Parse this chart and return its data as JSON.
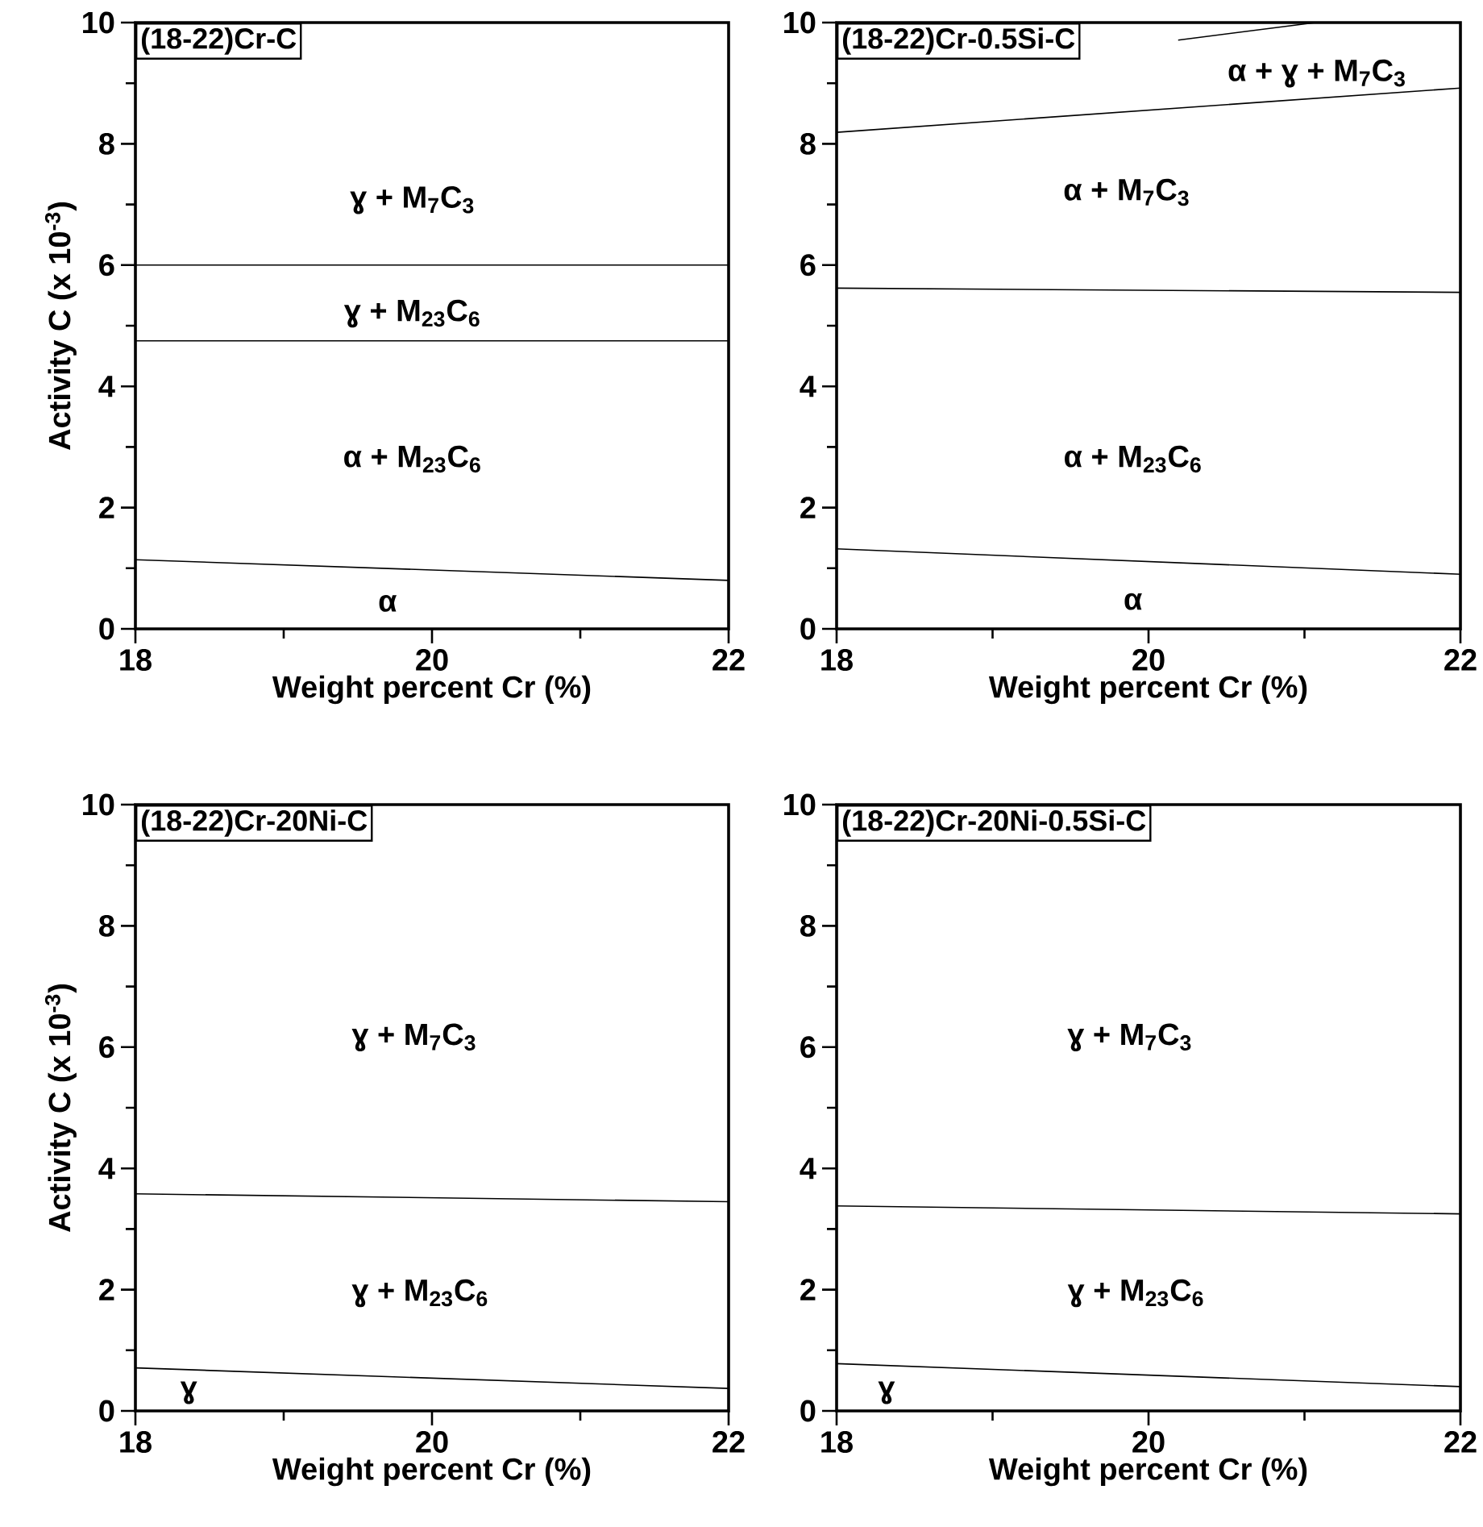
{
  "chart_data": [
    {
      "type": "line",
      "title": "(18-22)Cr-C",
      "xlabel": "Weight percent Cr (%)",
      "ylabel": "Activity C (x 10$^{-3}$)",
      "xlim": [
        18,
        22
      ],
      "ylim": [
        0,
        10
      ],
      "xticks": [
        18,
        20,
        22
      ],
      "yticks": [
        0,
        2,
        4,
        6,
        8,
        10
      ],
      "series": [
        {
          "color": "#000000",
          "x": [
            18,
            22
          ],
          "values": [
            6.0,
            6.0
          ]
        },
        {
          "color": "#000000",
          "x": [
            18,
            22
          ],
          "values": [
            4.75,
            4.75
          ]
        },
        {
          "color": "#000000",
          "x": [
            18,
            22
          ],
          "values": [
            1.14,
            0.8
          ]
        }
      ],
      "annotations": [
        "ɣ + M$_{7}$C$_{3}$",
        "ɣ + M$_{23}$C$_{6}$",
        "α + M$_{23}$C$_{6}$",
        "α"
      ]
    },
    {
      "type": "line",
      "title": "(18-22)Cr-0.5Si-C",
      "xlabel": "Weight percent Cr (%)",
      "xlim": [
        18,
        22
      ],
      "ylim": [
        0,
        10
      ],
      "xticks": [
        18,
        20,
        22
      ],
      "yticks": [
        0,
        2,
        4,
        6,
        8,
        10
      ],
      "series": [
        {
          "color": "#000000",
          "x": [
            20.19,
            21.07
          ],
          "values": [
            9.71,
            10
          ]
        },
        {
          "color": "#000000",
          "x": [
            18,
            22
          ],
          "values": [
            8.19,
            8.92
          ]
        },
        {
          "color": "#000000",
          "x": [
            18,
            22
          ],
          "values": [
            5.62,
            5.55
          ]
        },
        {
          "color": "#000000",
          "x": [
            18,
            22
          ],
          "values": [
            1.32,
            0.9
          ]
        }
      ],
      "annotations": [
        "α + ɣ + M$_{7}$C$_{3}$",
        "α + M$_{7}$C$_{3}$",
        "α + M$_{23}$C$_{6}$",
        "α"
      ]
    },
    {
      "type": "line",
      "title": "(18-22)Cr-20Ni-C",
      "xlabel": "Weight percent Cr (%)",
      "ylabel": "Activity C (x 10$^{-3}$)",
      "xlim": [
        18,
        22
      ],
      "ylim": [
        0,
        10
      ],
      "xticks": [
        18,
        20,
        22
      ],
      "yticks": [
        0,
        2,
        4,
        6,
        8,
        10
      ],
      "series": [
        {
          "color": "#000000",
          "x": [
            18,
            22
          ],
          "values": [
            3.58,
            3.45
          ]
        },
        {
          "color": "#000000",
          "x": [
            18,
            22
          ],
          "values": [
            0.71,
            0.37
          ]
        }
      ],
      "annotations": [
        "ɣ + M$_{7}$C$_{3}$",
        "ɣ + M$_{23}$C$_{6}$",
        "ɣ"
      ]
    },
    {
      "type": "line",
      "title": "(18-22)Cr-20Ni-0.5Si-C",
      "xlabel": "Weight percent Cr (%)",
      "xlim": [
        18,
        22
      ],
      "ylim": [
        0,
        10
      ],
      "xticks": [
        18,
        20,
        22
      ],
      "yticks": [
        0,
        2,
        4,
        6,
        8,
        10
      ],
      "series": [
        {
          "color": "#000000",
          "x": [
            18,
            22
          ],
          "values": [
            3.38,
            3.25
          ]
        },
        {
          "color": "#000000",
          "x": [
            18,
            22
          ],
          "values": [
            0.78,
            0.4
          ]
        }
      ],
      "annotations": [
        "ɣ + M$_{7}$C$_{3}$",
        "ɣ + M$_{23}$C$_{6}$",
        "ɣ"
      ]
    }
  ]
}
